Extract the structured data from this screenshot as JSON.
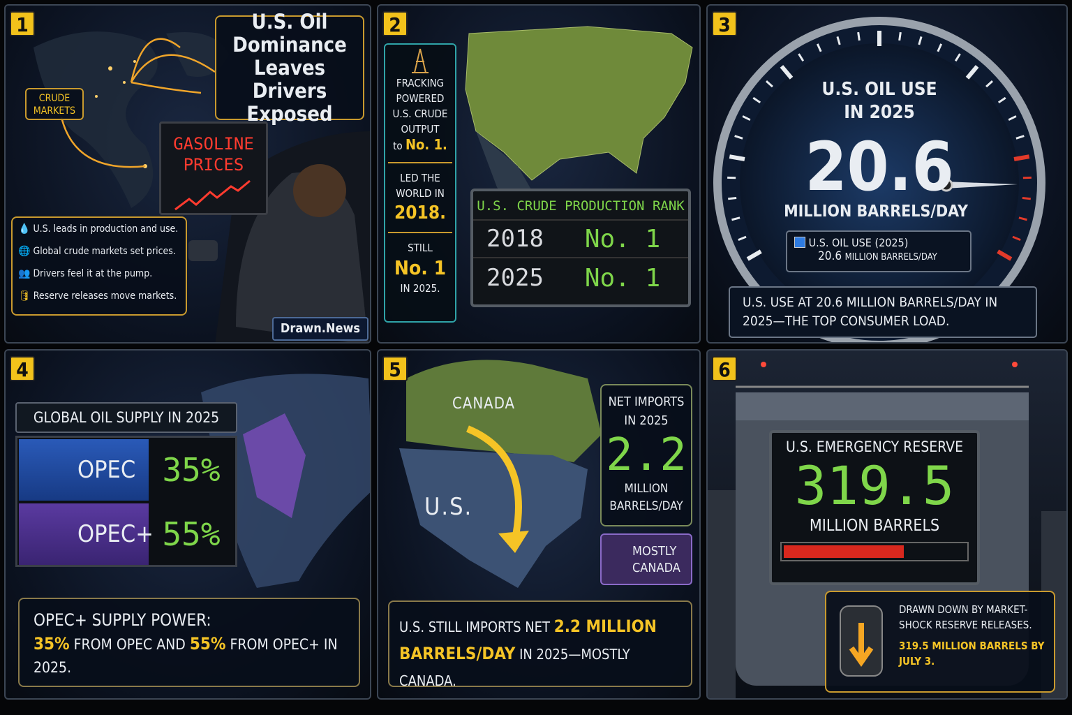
{
  "panels": [
    {
      "number": "1",
      "title": "U.S. Oil Dominance Leaves Drivers Exposed",
      "map_label": "CRUDE MARKETS",
      "sign": "GASOLINE PRICES",
      "bullets": [
        "U.S. leads in production and use.",
        "Global crude markets set prices.",
        "Drivers feel it at the pump.",
        "Reserve releases move markets."
      ],
      "credit": "Drawn.News"
    },
    {
      "number": "2",
      "sidebar": [
        [
          "FRACKING POWERED U.S. CRUDE OUTPUT",
          "to",
          "No. 1."
        ],
        [
          "LED THE WORLD IN",
          "2018."
        ],
        [
          "STILL",
          "No. 1",
          "IN 2025."
        ]
      ],
      "board_title": "U.S. CRUDE PRODUCTION RANK",
      "rows": [
        [
          "2018",
          "No. 1"
        ],
        [
          "2025",
          "No. 1"
        ]
      ]
    },
    {
      "number": "3",
      "title": "U.S. OIL USE IN 2025",
      "value": "20.6",
      "unit": "MILLION BARRELS/DAY",
      "legend": "U.S. OIL USE (2025)",
      "legend_value": "20.6",
      "legend_unit": "MILLION BARRELS/DAY",
      "caption": "U.S. USE AT 20.6 MILLION BARRELS/DAY IN 2025—THE TOP CONSUMER LOAD."
    },
    {
      "number": "4",
      "box_title": "GLOBAL OIL SUPPLY IN 2025",
      "rows": [
        [
          "OPEC",
          "35%"
        ],
        [
          "OPEC+",
          "55%"
        ]
      ],
      "caption": [
        "OPEC+ SUPPLY POWER:",
        "35%",
        " FROM OPEC AND ",
        "55%",
        " FROM OPEC+ IN 2025."
      ]
    },
    {
      "number": "5",
      "map_labels": [
        "CANADA",
        "U.S."
      ],
      "box_title": "NET IMPORTS IN 2025",
      "value": "2.2",
      "unit": "MILLION BARRELS/DAY",
      "tag": "MOSTLY CANADA",
      "caption": [
        "U.S. STILL IMPORTS NET ",
        "2.2 MILLION BARRELS/DAY",
        " IN 2025—MOSTLY CANADA."
      ]
    },
    {
      "number": "6",
      "title": "U.S. EMERGENCY RESERVE",
      "value": "319.5",
      "unit": "MILLION BARRELS",
      "note": "DRAWN DOWN BY MARKET-SHOCK RESERVE RELEASES.",
      "note_highlight": "319.5 MILLION BARRELS BY JULY 3."
    }
  ]
}
